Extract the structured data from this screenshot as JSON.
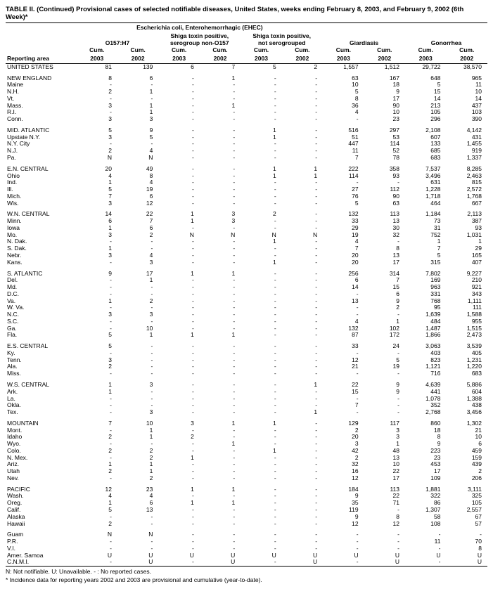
{
  "title": "TABLE II. (Continued) Provisional cases of selected notifiable diseases, United States, weeks ending February 8, 2003, and February 9, 2002 (6th Week)*",
  "mainGroup": "Escherichia coli, Enterohemorrhagic (EHEC)",
  "subGroups": [
    "O157:H7",
    "Shiga toxin positive, serogroup non-O157",
    "Shiga toxin positive, not serogrouped",
    "Giardiasis",
    "Gonorrhea"
  ],
  "colHeads": [
    "Cum. 2003",
    "Cum. 2002"
  ],
  "rowLabel": "Reporting area",
  "footnotes": [
    "N: Not notifiable.        U: Unavailable.            - : No reported cases.",
    "* Incidence data for reporting years 2002 and 2003 are provisional and cumulative (year-to-date)."
  ],
  "sections": [
    {
      "rows": [
        {
          "a": "UNITED STATES",
          "v": [
            "81",
            "139",
            "6",
            "7",
            "5",
            "2",
            "1,557",
            "1,512",
            "29,722",
            "38,570"
          ]
        }
      ]
    },
    {
      "rows": [
        {
          "a": "NEW ENGLAND",
          "v": [
            "8",
            "6",
            "-",
            "1",
            "-",
            "-",
            "63",
            "167",
            "648",
            "965"
          ]
        },
        {
          "a": "Maine",
          "v": [
            "-",
            "-",
            "-",
            "-",
            "-",
            "-",
            "10",
            "18",
            "5",
            "11"
          ]
        },
        {
          "a": "N.H.",
          "v": [
            "2",
            "1",
            "-",
            "-",
            "-",
            "-",
            "5",
            "9",
            "15",
            "10"
          ]
        },
        {
          "a": "Vt.",
          "v": [
            "-",
            "-",
            "-",
            "-",
            "-",
            "-",
            "8",
            "17",
            "14",
            "14"
          ]
        },
        {
          "a": "Mass.",
          "v": [
            "3",
            "1",
            "-",
            "1",
            "-",
            "-",
            "36",
            "90",
            "213",
            "437"
          ]
        },
        {
          "a": "R.I.",
          "v": [
            "-",
            "1",
            "-",
            "-",
            "-",
            "-",
            "4",
            "10",
            "105",
            "103"
          ]
        },
        {
          "a": "Conn.",
          "v": [
            "3",
            "3",
            "-",
            "-",
            "-",
            "-",
            "-",
            "23",
            "296",
            "390"
          ]
        }
      ]
    },
    {
      "rows": [
        {
          "a": "MID. ATLANTIC",
          "v": [
            "5",
            "9",
            "-",
            "-",
            "1",
            "-",
            "516",
            "297",
            "2,108",
            "4,142"
          ]
        },
        {
          "a": "Upstate N.Y.",
          "v": [
            "3",
            "5",
            "-",
            "-",
            "1",
            "-",
            "51",
            "53",
            "607",
            "431"
          ]
        },
        {
          "a": "N.Y. City",
          "v": [
            "-",
            "-",
            "-",
            "-",
            "-",
            "-",
            "447",
            "114",
            "133",
            "1,455"
          ]
        },
        {
          "a": "N.J.",
          "v": [
            "2",
            "4",
            "-",
            "-",
            "-",
            "-",
            "11",
            "52",
            "685",
            "919"
          ]
        },
        {
          "a": "Pa.",
          "v": [
            "N",
            "N",
            "-",
            "-",
            "-",
            "-",
            "7",
            "78",
            "683",
            "1,337"
          ]
        }
      ]
    },
    {
      "rows": [
        {
          "a": "E.N. CENTRAL",
          "v": [
            "20",
            "49",
            "-",
            "-",
            "1",
            "1",
            "222",
            "358",
            "7,537",
            "8,285"
          ]
        },
        {
          "a": "Ohio",
          "v": [
            "4",
            "8",
            "-",
            "-",
            "1",
            "1",
            "114",
            "93",
            "3,496",
            "2,463"
          ]
        },
        {
          "a": "Ind.",
          "v": [
            "1",
            "4",
            "-",
            "-",
            "-",
            "-",
            "-",
            "-",
            "631",
            "815"
          ]
        },
        {
          "a": "Ill.",
          "v": [
            "5",
            "19",
            "-",
            "-",
            "-",
            "-",
            "27",
            "112",
            "1,228",
            "2,572"
          ]
        },
        {
          "a": "Mich.",
          "v": [
            "7",
            "6",
            "-",
            "-",
            "-",
            "-",
            "76",
            "90",
            "1,718",
            "1,768"
          ]
        },
        {
          "a": "Wis.",
          "v": [
            "3",
            "12",
            "-",
            "-",
            "-",
            "-",
            "5",
            "63",
            "464",
            "667"
          ]
        }
      ]
    },
    {
      "rows": [
        {
          "a": "W.N. CENTRAL",
          "v": [
            "14",
            "22",
            "1",
            "3",
            "2",
            "-",
            "132",
            "113",
            "1,184",
            "2,113"
          ]
        },
        {
          "a": "Minn.",
          "v": [
            "6",
            "7",
            "1",
            "3",
            "-",
            "-",
            "33",
            "13",
            "73",
            "387"
          ]
        },
        {
          "a": "Iowa",
          "v": [
            "1",
            "6",
            "-",
            "-",
            "-",
            "-",
            "29",
            "30",
            "31",
            "93"
          ]
        },
        {
          "a": "Mo.",
          "v": [
            "3",
            "2",
            "N",
            "N",
            "N",
            "N",
            "19",
            "32",
            "752",
            "1,031"
          ]
        },
        {
          "a": "N. Dak.",
          "v": [
            "-",
            "-",
            "-",
            "-",
            "1",
            "-",
            "4",
            "-",
            "1",
            "1"
          ]
        },
        {
          "a": "S. Dak.",
          "v": [
            "1",
            "-",
            "-",
            "-",
            "-",
            "-",
            "7",
            "8",
            "7",
            "29"
          ]
        },
        {
          "a": "Nebr.",
          "v": [
            "3",
            "4",
            "-",
            "-",
            "-",
            "-",
            "20",
            "13",
            "5",
            "165"
          ]
        },
        {
          "a": "Kans.",
          "v": [
            "-",
            "3",
            "-",
            "-",
            "1",
            "-",
            "20",
            "17",
            "315",
            "407"
          ]
        }
      ]
    },
    {
      "rows": [
        {
          "a": "S. ATLANTIC",
          "v": [
            "9",
            "17",
            "1",
            "1",
            "-",
            "-",
            "256",
            "314",
            "7,802",
            "9,227"
          ]
        },
        {
          "a": "Del.",
          "v": [
            "-",
            "1",
            "-",
            "-",
            "-",
            "-",
            "6",
            "7",
            "169",
            "210"
          ]
        },
        {
          "a": "Md.",
          "v": [
            "-",
            "-",
            "-",
            "-",
            "-",
            "-",
            "14",
            "15",
            "963",
            "921"
          ]
        },
        {
          "a": "D.C.",
          "v": [
            "-",
            "-",
            "-",
            "-",
            "-",
            "-",
            "-",
            "6",
            "331",
            "343"
          ]
        },
        {
          "a": "Va.",
          "v": [
            "1",
            "2",
            "-",
            "-",
            "-",
            "-",
            "13",
            "9",
            "768",
            "1,111"
          ]
        },
        {
          "a": "W. Va.",
          "v": [
            "-",
            "-",
            "-",
            "-",
            "-",
            "-",
            "-",
            "2",
            "95",
            "111"
          ]
        },
        {
          "a": "N.C.",
          "v": [
            "3",
            "3",
            "-",
            "-",
            "-",
            "-",
            "-",
            "-",
            "1,639",
            "1,588"
          ]
        },
        {
          "a": "S.C.",
          "v": [
            "-",
            "-",
            "-",
            "-",
            "-",
            "-",
            "4",
            "1",
            "484",
            "955"
          ]
        },
        {
          "a": "Ga.",
          "v": [
            "-",
            "10",
            "-",
            "-",
            "-",
            "-",
            "132",
            "102",
            "1,487",
            "1,515"
          ]
        },
        {
          "a": "Fla.",
          "v": [
            "5",
            "1",
            "1",
            "1",
            "-",
            "-",
            "87",
            "172",
            "1,866",
            "2,473"
          ]
        }
      ]
    },
    {
      "rows": [
        {
          "a": "E.S. CENTRAL",
          "v": [
            "5",
            "-",
            "-",
            "-",
            "-",
            "-",
            "33",
            "24",
            "3,063",
            "3,539"
          ]
        },
        {
          "a": "Ky.",
          "v": [
            "-",
            "-",
            "-",
            "-",
            "-",
            "-",
            "-",
            "-",
            "403",
            "405"
          ]
        },
        {
          "a": "Tenn.",
          "v": [
            "3",
            "-",
            "-",
            "-",
            "-",
            "-",
            "12",
            "5",
            "823",
            "1,231"
          ]
        },
        {
          "a": "Ala.",
          "v": [
            "2",
            "-",
            "-",
            "-",
            "-",
            "-",
            "21",
            "19",
            "1,121",
            "1,220"
          ]
        },
        {
          "a": "Miss.",
          "v": [
            "-",
            "-",
            "-",
            "-",
            "-",
            "-",
            "-",
            "-",
            "716",
            "683"
          ]
        }
      ]
    },
    {
      "rows": [
        {
          "a": "W.S. CENTRAL",
          "v": [
            "1",
            "3",
            "-",
            "-",
            "-",
            "1",
            "22",
            "9",
            "4,639",
            "5,886"
          ]
        },
        {
          "a": "Ark.",
          "v": [
            "1",
            "-",
            "-",
            "-",
            "-",
            "-",
            "15",
            "9",
            "441",
            "604"
          ]
        },
        {
          "a": "La.",
          "v": [
            "-",
            "-",
            "-",
            "-",
            "-",
            "-",
            "-",
            "-",
            "1,078",
            "1,388"
          ]
        },
        {
          "a": "Okla.",
          "v": [
            "-",
            "-",
            "-",
            "-",
            "-",
            "-",
            "7",
            "-",
            "352",
            "438"
          ]
        },
        {
          "a": "Tex.",
          "v": [
            "-",
            "3",
            "-",
            "-",
            "-",
            "1",
            "-",
            "-",
            "2,768",
            "3,456"
          ]
        }
      ]
    },
    {
      "rows": [
        {
          "a": "MOUNTAIN",
          "v": [
            "7",
            "10",
            "3",
            "1",
            "1",
            "-",
            "129",
            "117",
            "860",
            "1,302"
          ]
        },
        {
          "a": "Mont.",
          "v": [
            "-",
            "1",
            "-",
            "-",
            "-",
            "-",
            "2",
            "3",
            "18",
            "21"
          ]
        },
        {
          "a": "Idaho",
          "v": [
            "2",
            "1",
            "2",
            "-",
            "-",
            "-",
            "20",
            "3",
            "8",
            "10"
          ]
        },
        {
          "a": "Wyo.",
          "v": [
            "-",
            "-",
            "-",
            "1",
            "-",
            "-",
            "3",
            "1",
            "9",
            "6"
          ]
        },
        {
          "a": "Colo.",
          "v": [
            "2",
            "2",
            "-",
            "-",
            "1",
            "-",
            "42",
            "48",
            "223",
            "459"
          ]
        },
        {
          "a": "N. Mex.",
          "v": [
            "-",
            "2",
            "1",
            "-",
            "-",
            "-",
            "2",
            "13",
            "23",
            "159"
          ]
        },
        {
          "a": "Ariz.",
          "v": [
            "1",
            "1",
            "-",
            "-",
            "-",
            "-",
            "32",
            "10",
            "453",
            "439"
          ]
        },
        {
          "a": "Utah",
          "v": [
            "2",
            "1",
            "-",
            "-",
            "-",
            "-",
            "16",
            "22",
            "17",
            "2"
          ]
        },
        {
          "a": "Nev.",
          "v": [
            "-",
            "2",
            "-",
            "-",
            "-",
            "-",
            "12",
            "17",
            "109",
            "206"
          ]
        }
      ]
    },
    {
      "rows": [
        {
          "a": "PACIFIC",
          "v": [
            "12",
            "23",
            "1",
            "1",
            "-",
            "-",
            "184",
            "113",
            "1,881",
            "3,111"
          ]
        },
        {
          "a": "Wash.",
          "v": [
            "4",
            "4",
            "-",
            "-",
            "-",
            "-",
            "9",
            "22",
            "322",
            "325"
          ]
        },
        {
          "a": "Oreg.",
          "v": [
            "1",
            "6",
            "1",
            "1",
            "-",
            "-",
            "35",
            "71",
            "86",
            "105"
          ]
        },
        {
          "a": "Calif.",
          "v": [
            "5",
            "13",
            "-",
            "-",
            "-",
            "-",
            "119",
            "-",
            "1,307",
            "2,557"
          ]
        },
        {
          "a": "Alaska",
          "v": [
            "-",
            "-",
            "-",
            "-",
            "-",
            "-",
            "9",
            "8",
            "58",
            "67"
          ]
        },
        {
          "a": "Hawaii",
          "v": [
            "2",
            "-",
            "-",
            "-",
            "-",
            "-",
            "12",
            "12",
            "108",
            "57"
          ]
        }
      ]
    },
    {
      "rows": [
        {
          "a": "Guam",
          "v": [
            "N",
            "N",
            "-",
            "-",
            "-",
            "-",
            "-",
            "-",
            "-",
            "-"
          ]
        },
        {
          "a": "P.R.",
          "v": [
            "-",
            "-",
            "-",
            "-",
            "-",
            "-",
            "-",
            "-",
            "11",
            "70"
          ]
        },
        {
          "a": "V.I.",
          "v": [
            "-",
            "-",
            "-",
            "-",
            "-",
            "-",
            "-",
            "-",
            "-",
            "8"
          ]
        },
        {
          "a": "Amer. Samoa",
          "v": [
            "U",
            "U",
            "U",
            "U",
            "U",
            "U",
            "U",
            "U",
            "U",
            "U"
          ]
        },
        {
          "a": "C.N.M.I.",
          "v": [
            "-",
            "U",
            "-",
            "U",
            "-",
            "U",
            "-",
            "U",
            "-",
            "U"
          ]
        }
      ]
    }
  ]
}
